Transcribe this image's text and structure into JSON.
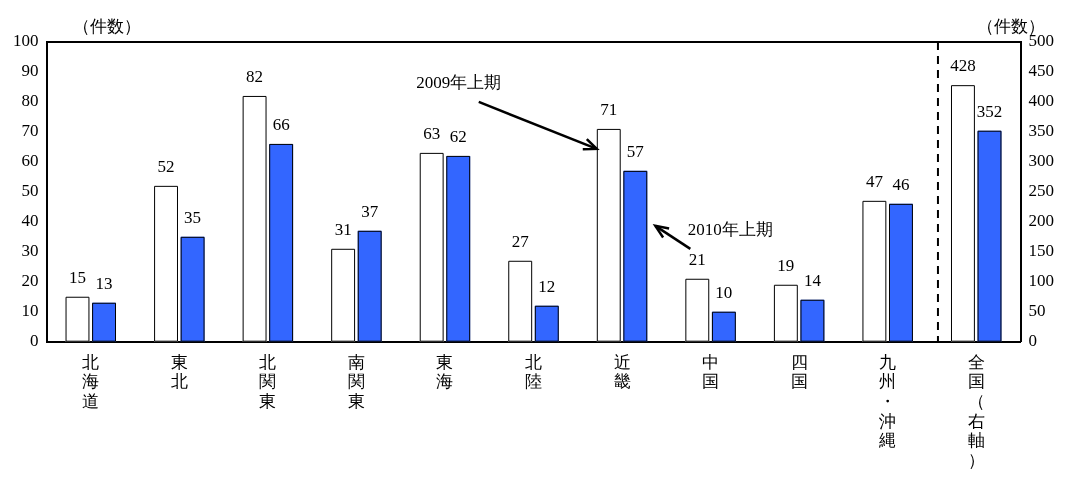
{
  "chart_data": {
    "type": "bar",
    "ylabel": "（件数）",
    "y2label": "（件数）",
    "categories": [
      "北海道",
      "東北",
      "北関東",
      "南関東",
      "東海",
      "北陸",
      "近畿",
      "中国",
      "四国",
      "九州・沖縄",
      "全国（右軸）"
    ],
    "series": [
      {
        "name": "2009年上期",
        "color": "#ffffff",
        "values": [
          15,
          52,
          82,
          31,
          63,
          27,
          71,
          21,
          19,
          47,
          null
        ]
      },
      {
        "name": "2010年上期",
        "color": "#3366ff",
        "values": [
          13,
          35,
          66,
          37,
          62,
          12,
          57,
          10,
          14,
          46,
          null
        ]
      },
      {
        "color": "#ffffff",
        "axis": "y2",
        "values": [
          null,
          null,
          null,
          null,
          null,
          null,
          null,
          null,
          null,
          null,
          428
        ]
      },
      {
        "color": "#3366ff",
        "axis": "y2",
        "values": [
          null,
          null,
          null,
          null,
          null,
          null,
          null,
          null,
          null,
          null,
          352
        ]
      }
    ],
    "ylim": [
      0,
      100
    ],
    "yticks": [
      0,
      10,
      20,
      30,
      40,
      50,
      60,
      70,
      80,
      90,
      100
    ],
    "y2lim": [
      0,
      500
    ],
    "y2ticks": [
      0,
      50,
      100,
      150,
      200,
      250,
      300,
      350,
      400,
      450,
      500
    ],
    "data_labels": true,
    "grid": false,
    "legend": "top right"
  }
}
